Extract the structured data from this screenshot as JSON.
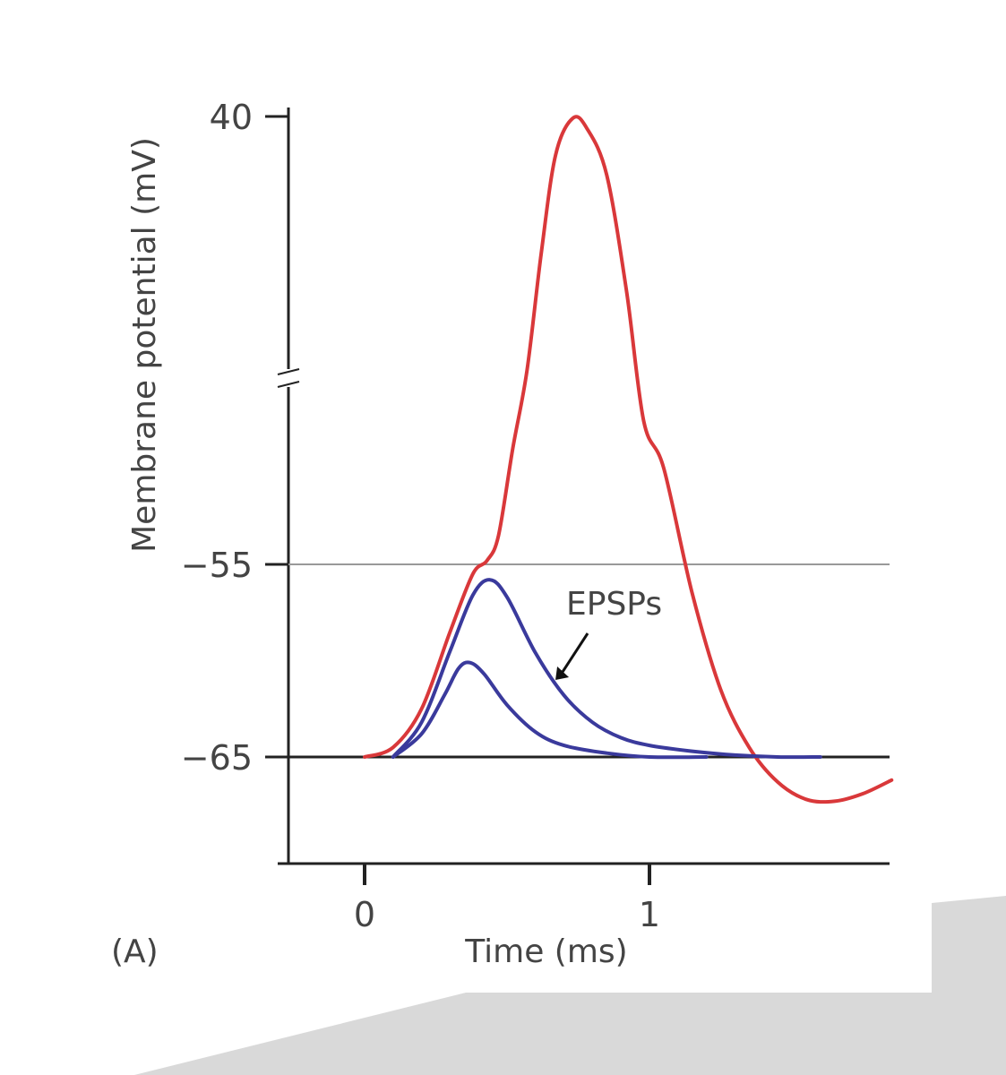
{
  "figure": {
    "panel_label": "(A)",
    "background_shape_color": "#d9d9d9"
  },
  "chart_data": {
    "type": "line",
    "xlabel": "Time (ms)",
    "ylabel": "Membrane potential (mV)",
    "x_ticks": [
      {
        "value": 0,
        "label": "0"
      },
      {
        "value": 1,
        "label": "1"
      }
    ],
    "y_ticks": [
      {
        "value": -65,
        "label": "−65"
      },
      {
        "value": -55,
        "label": "−55"
      },
      {
        "value": 40,
        "label": "40"
      }
    ],
    "y_axis_break": true,
    "y_break_between": [
      -55,
      40
    ],
    "xlim": [
      -0.3,
      1.85
    ],
    "reference_lines": [
      {
        "name": "resting potential",
        "y": -65,
        "color": "#222222"
      },
      {
        "name": "threshold",
        "y": -55,
        "color": "#999999"
      }
    ],
    "annotation": {
      "text": "EPSPs",
      "color": "#3d3d9e",
      "arrow_to": {
        "x": 0.67,
        "y": -61
      }
    },
    "series": [
      {
        "color": "#d9383a",
        "points": [
          [
            0,
            -65
          ],
          [
            0.1,
            -64.5
          ],
          [
            0.2,
            -62.5
          ],
          [
            0.3,
            -58.5
          ],
          [
            0.38,
            -55.5
          ],
          [
            0.43,
            -54.8
          ],
          [
            0.47,
            -53.5
          ],
          [
            0.52,
            -45
          ],
          [
            0.57,
            -25
          ],
          [
            0.62,
            5
          ],
          [
            0.67,
            30
          ],
          [
            0.73,
            39.5
          ],
          [
            0.78,
            37
          ],
          [
            0.85,
            25
          ],
          [
            0.92,
            -5
          ],
          [
            0.98,
            -38
          ],
          [
            1.05,
            -50
          ],
          [
            1.15,
            -56.5
          ],
          [
            1.25,
            -61.5
          ],
          [
            1.35,
            -64.5
          ],
          [
            1.45,
            -66.3
          ],
          [
            1.55,
            -67.2
          ],
          [
            1.65,
            -67.3
          ],
          [
            1.75,
            -66.9
          ],
          [
            1.85,
            -66.2
          ]
        ]
      },
      {
        "color": "#3a3a9c",
        "points": [
          [
            0.1,
            -65
          ],
          [
            0.2,
            -63.2
          ],
          [
            0.3,
            -59.5
          ],
          [
            0.38,
            -56.6
          ],
          [
            0.44,
            -55.8
          ],
          [
            0.5,
            -56.7
          ],
          [
            0.6,
            -59.6
          ],
          [
            0.7,
            -61.8
          ],
          [
            0.8,
            -63.2
          ],
          [
            0.9,
            -64
          ],
          [
            1.0,
            -64.4
          ],
          [
            1.15,
            -64.7
          ],
          [
            1.3,
            -64.9
          ],
          [
            1.45,
            -65
          ],
          [
            1.6,
            -65
          ]
        ]
      },
      {
        "color": "#3a3a9c",
        "points": [
          [
            0.1,
            -65
          ],
          [
            0.2,
            -63.8
          ],
          [
            0.28,
            -61.8
          ],
          [
            0.33,
            -60.4
          ],
          [
            0.37,
            -60.1
          ],
          [
            0.42,
            -60.7
          ],
          [
            0.5,
            -62.3
          ],
          [
            0.6,
            -63.7
          ],
          [
            0.7,
            -64.4
          ],
          [
            0.85,
            -64.8
          ],
          [
            1.0,
            -65
          ],
          [
            1.2,
            -65
          ]
        ]
      }
    ]
  }
}
